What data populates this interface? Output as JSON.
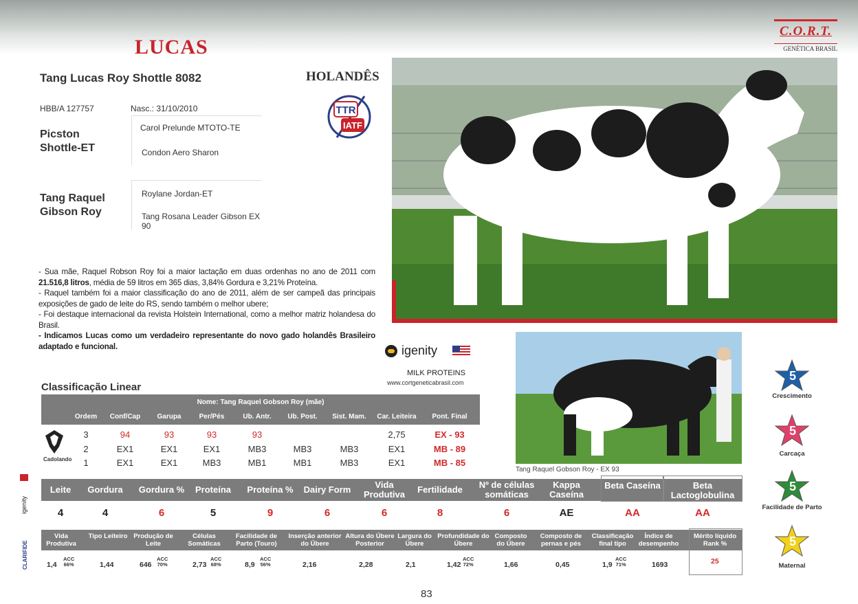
{
  "brand": {
    "name": "C.O.R.T.",
    "subtitle": "GENÉTICA BRASIL"
  },
  "bull": {
    "title": "LUCAS",
    "full_name": "Tang Lucas Roy Shottle 8082",
    "breed": "HOLANDÊS",
    "registry": "HBB/A 127757",
    "birth": "Nasc.: 31/10/2010",
    "badge_top": "TTR",
    "badge_bottom": "IATF"
  },
  "pedigree": {
    "sire": "Picston Shottle-ET",
    "sire_sire": "Carol Prelunde MTOTO-TE",
    "sire_dam": "Condon Aero Sharon",
    "dam": "Tang Raquel Gibson Roy",
    "dam_sire": "Roylane Jordan-ET",
    "dam_dam": "Tang Rosana Leader Gibson EX 90"
  },
  "description": {
    "p1a": "- Sua mãe, Raquel Robson Roy foi a maior lactação em duas ordenhas no ano de 2011 com ",
    "p1b": "21.516,8 litros",
    "p1c": ", média de 59 litros em 365 dias, 3,84% Gordura e 3,21% Proteína.",
    "p2": "- Raquel também foi a maior classificação do ano de 2011, além de ser campeã das principais exposições de gado de leite do RS, sendo também o melhor ubere;",
    "p3": "- Foi destaque internacional da revista Holstein International, como a melhor matriz holandesa do Brasil.",
    "p4": "- Indicamos Lucas como um verdadeiro representante do novo gado holandês Brasileiro adaptado e funcional."
  },
  "igenity": {
    "logo": "igenity",
    "section": "MILK PROTEINS",
    "site": "www.cortgeneticabrasil.com"
  },
  "dam_photo_caption": "Tang Raquel Gobson Roy - EX 93",
  "linear": {
    "title": "Classificação Linear",
    "name_row": "Nome: Tang Raquel Gobson Roy (mãe)",
    "headers": [
      "Ordem",
      "Conf/Cap",
      "Garupa",
      "Per/Pés",
      "Ub. Antr.",
      "Ub. Post.",
      "Sist. Mam.",
      "Car. Leiteira",
      "Pont. Final"
    ],
    "rows": [
      [
        "3",
        "94",
        "93",
        "93",
        "93",
        "",
        "",
        "2,75",
        "EX - 93"
      ],
      [
        "2",
        "EX1",
        "EX1",
        "EX1",
        "MB3",
        "MB3",
        "MB3",
        "EX1",
        "MB - 89"
      ],
      [
        "1",
        "EX1",
        "EX1",
        "MB3",
        "MB1",
        "MB1",
        "MB3",
        "EX1",
        "MB - 85"
      ]
    ],
    "logo_text": "Cadolando"
  },
  "genomic": {
    "vertical_label": "igenity",
    "headers": [
      "Leite",
      "Gordura",
      "Gordura %",
      "Proteína",
      "Proteína %",
      "Dairy Form",
      "Vida Produtiva",
      "Fertilidade",
      "Nº de células somáticas",
      "Kappa Caseína",
      "Beta Caseína",
      "Beta Lactoglobulina"
    ],
    "values": [
      "4",
      "4",
      "6",
      "5",
      "9",
      "6",
      "6",
      "8",
      "6",
      "AE",
      "AA",
      "AA"
    ]
  },
  "clarifide": {
    "vertical_label": "CLARIFIDE",
    "headers": [
      "Vida Produtiva",
      "Tipo Leiteiro",
      "Produção de Leite",
      "Células Somáticas",
      "Facilidade de Parto (Touro)",
      "Inserção anterior do Úbere",
      "Altura do Úbere Posterior",
      "Largura do Úbere",
      "Profundidade do Úbere",
      "Composto do Úbere",
      "Composto de pernas e pés",
      "Classificação final tipo",
      "Índice de desempenho",
      "Mérito líquido Rank %"
    ],
    "values": [
      "1,4",
      "1,44",
      "646",
      "2,73",
      "8,9",
      "2,16",
      "2,28",
      "2,1",
      "1,42",
      "1,66",
      "0,45",
      "1,9",
      "1693",
      "25"
    ],
    "acc_label": "ACC",
    "acc": [
      "66%",
      "",
      "70%",
      "68%",
      "56%",
      "",
      "",
      "",
      "72%",
      "",
      "",
      "71%",
      "",
      ""
    ]
  },
  "stars": [
    {
      "value": "5",
      "label": "Crescimento",
      "color": "#1f5fa8"
    },
    {
      "value": "5",
      "label": "Carcaça",
      "color": "#e0406a"
    },
    {
      "value": "5",
      "label": "Facilidade de Parto",
      "color": "#2e8b3a"
    },
    {
      "value": "5",
      "label": "Maternal",
      "color": "#f2d11a"
    }
  ],
  "page_number": "83"
}
